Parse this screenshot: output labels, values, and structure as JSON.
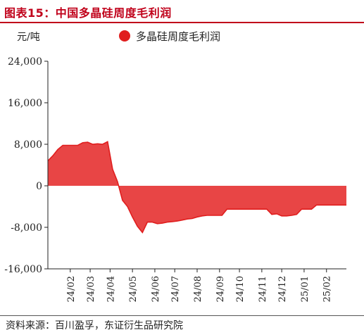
{
  "title": "图表15：中国多晶硅周度毛利润",
  "source": "资料来源：百川盈孚，东证衍生品研究院",
  "colors": {
    "accent": "#c0001a",
    "area": "#e84545",
    "line": "#e01e1e"
  },
  "chart_data": {
    "type": "area",
    "ylabel": "元/吨",
    "yticks": [
      24000,
      16000,
      8000,
      0,
      -8000,
      -16000
    ],
    "ytick_labels": [
      "24,000",
      "16,000",
      "8,000",
      "0",
      "-8,000",
      "-16,000"
    ],
    "ylim": [
      -16000,
      24000
    ],
    "xlim": [
      0,
      60
    ],
    "xticks": [
      {
        "label": "24/02",
        "x": 4.5
      },
      {
        "label": "24/03",
        "x": 8.5
      },
      {
        "label": "24/04",
        "x": 12.5
      },
      {
        "label": "24/05",
        "x": 17
      },
      {
        "label": "24/06",
        "x": 21.5
      },
      {
        "label": "24/07",
        "x": 25.5
      },
      {
        "label": "24/08",
        "x": 30
      },
      {
        "label": "24/09",
        "x": 34.5
      },
      {
        "label": "24/10",
        "x": 38.5
      },
      {
        "label": "24/11",
        "x": 43
      },
      {
        "label": "24/12",
        "x": 47
      },
      {
        "label": "25/01",
        "x": 51.5
      },
      {
        "label": "25/02",
        "x": 56
      }
    ],
    "legend": {
      "position": "top-center"
    },
    "series": [
      {
        "name": "多晶硅周度毛利润",
        "x": [
          0,
          1,
          2,
          3,
          4,
          5,
          6,
          7,
          8,
          9,
          10,
          11,
          12,
          13,
          14,
          15,
          16,
          17,
          18,
          19,
          20,
          21,
          22,
          23,
          24,
          25,
          26,
          27,
          28,
          29,
          30,
          31,
          32,
          33,
          34,
          35,
          36,
          37,
          38,
          39,
          40,
          41,
          42,
          43,
          44,
          45,
          46,
          47,
          48,
          49,
          50,
          51,
          52,
          53,
          54,
          55,
          56,
          57,
          58,
          59,
          60
        ],
        "values": [
          4800,
          5800,
          7000,
          7800,
          7800,
          7800,
          7800,
          8300,
          8400,
          8000,
          8100,
          8000,
          8500,
          3200,
          800,
          -2800,
          -4000,
          -6000,
          -7800,
          -9000,
          -7000,
          -7000,
          -7300,
          -7200,
          -7000,
          -6900,
          -6800,
          -6600,
          -6400,
          -6300,
          -6000,
          -5800,
          -5700,
          -5700,
          -5700,
          -5700,
          -4500,
          -4500,
          -4500,
          -4500,
          -4500,
          -4500,
          -4500,
          -4500,
          -4500,
          -5500,
          -5400,
          -5800,
          -5800,
          -5700,
          -5500,
          -4500,
          -4500,
          -4500,
          -3700,
          -3700,
          -3700,
          -3700,
          -3700,
          -3700,
          -3700
        ]
      }
    ]
  }
}
